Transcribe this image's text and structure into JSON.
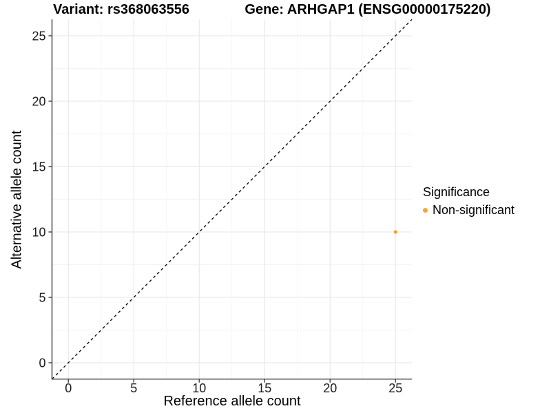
{
  "chart_data": {
    "type": "scatter",
    "title_left": "Variant: rs368063556",
    "title_right": "Gene: ARHGAP1 (ENSG00000175220)",
    "xlabel": "Reference allele count",
    "ylabel": "Alternative allele count",
    "xlim": [
      -1.25,
      26.25
    ],
    "ylim": [
      -1.25,
      26.25
    ],
    "xticks": [
      0,
      5,
      10,
      15,
      20,
      25
    ],
    "yticks": [
      0,
      5,
      10,
      15,
      20,
      25
    ],
    "minor_tick_step": 2.5,
    "grid": true,
    "series": [
      {
        "name": "Non-significant",
        "color": "#F9A242",
        "points": [
          {
            "x": 25,
            "y": 10
          }
        ]
      }
    ],
    "reference_line": {
      "type": "identity",
      "slope": 1,
      "intercept": 0,
      "style": "dashed",
      "color": "#000000"
    },
    "legend": {
      "title": "Significance",
      "position": "right",
      "entries": [
        {
          "label": "Non-significant",
          "color": "#F9A242"
        }
      ]
    },
    "style": {
      "grid_major_color": "#e9e9e9",
      "grid_minor_color": "#f4f4f4",
      "axis_line_color": "#565656",
      "tick_color": "#404040",
      "tick_label_color": "#1a1a1a",
      "dash_pattern": "4 4",
      "point_radius": 2.7,
      "legend_dot_diameter": 7
    }
  }
}
